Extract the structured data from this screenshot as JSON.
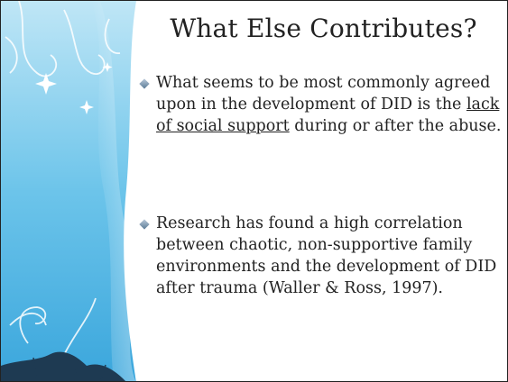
{
  "slide": {
    "title": "What Else Contributes?",
    "bullets": [
      {
        "parts": [
          "What seems to be most commonly agreed upon in the development of DID is the ",
          "lack of social support",
          " during or after the abuse."
        ]
      },
      {
        "parts": [
          "Research has found a high correlation between chaotic, non-supportive family environments and the development of DID after trauma (Waller & Ross, 1997)."
        ]
      }
    ]
  }
}
